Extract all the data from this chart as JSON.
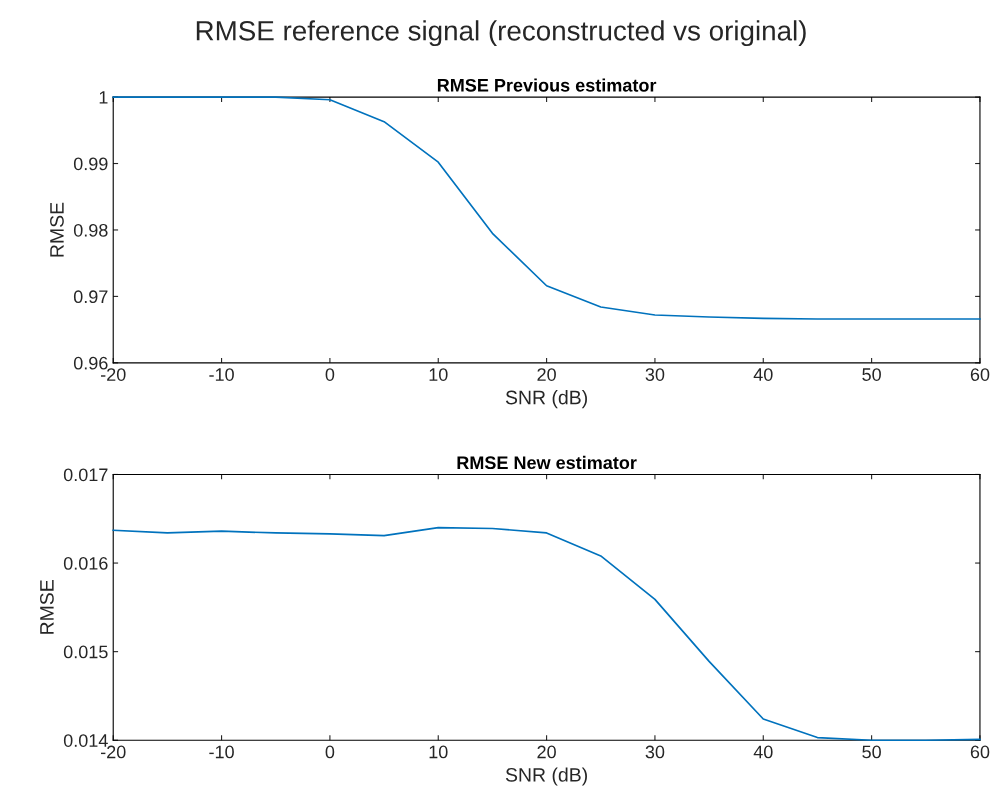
{
  "chart_data": [
    {
      "type": "line",
      "title": "RMSE Previous estimator",
      "annotations": [
        "RMSE reference signal (reconstructed vs original)"
      ],
      "xlabel": "SNR (dB)",
      "ylabel": "RMSE",
      "x": [
        -20,
        -15,
        -10,
        -5,
        0,
        5,
        10,
        15,
        20,
        25,
        30,
        35,
        40,
        45,
        50,
        55,
        60
      ],
      "series": [
        {
          "color": "#0072bd",
          "values": [
            1.0,
            1.0,
            1.0,
            1.0,
            0.9996,
            0.9963,
            0.9902,
            0.9795,
            0.9716,
            0.9684,
            0.9672,
            0.9669,
            0.9667,
            0.9666,
            0.9666,
            0.9666,
            0.9666
          ]
        }
      ],
      "xlim": [
        -20,
        60
      ],
      "xticks": [
        -20,
        -10,
        0,
        10,
        20,
        30,
        40,
        50,
        60
      ],
      "ylim": [
        0.96,
        1
      ],
      "yticks": [
        0.96,
        0.97,
        0.98,
        0.99,
        {
          "value": 1,
          "label": "1"
        }
      ]
    },
    {
      "type": "line",
      "title": "RMSE New estimator",
      "xlabel": "SNR (dB)",
      "ylabel": "RMSE",
      "x": [
        -20,
        -15,
        -10,
        -5,
        0,
        5,
        10,
        15,
        20,
        25,
        30,
        35,
        40,
        45,
        50,
        55,
        60
      ],
      "series": [
        {
          "color": "#0072bd",
          "values": [
            0.01637,
            0.01634,
            0.01636,
            0.01634,
            0.01633,
            0.01631,
            0.0164,
            0.01639,
            0.01634,
            0.01608,
            0.01559,
            0.01489,
            0.01424,
            0.01403,
            0.014,
            0.014,
            0.01401
          ]
        }
      ],
      "xlim": [
        -20,
        60
      ],
      "xticks": [
        -20,
        -10,
        0,
        10,
        20,
        30,
        40,
        50,
        60
      ],
      "ylim": [
        0.014,
        0.017
      ],
      "yticks": [
        0.014,
        0.015,
        0.016,
        0.017
      ]
    }
  ]
}
